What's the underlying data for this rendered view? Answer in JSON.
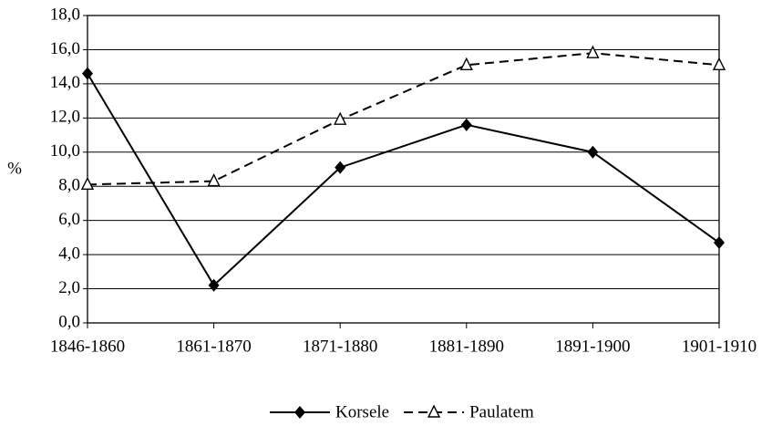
{
  "chart_data": {
    "type": "line",
    "ylabel": "%",
    "categories": [
      "1846-1860",
      "1861-1870",
      "1871-1880",
      "1881-1890",
      "1891-1900",
      "1901-1910"
    ],
    "series": [
      {
        "name": "Korsele",
        "color": "#000000",
        "dash": "solid",
        "marker": "diamond",
        "values": [
          14.6,
          2.2,
          9.1,
          11.6,
          10.0,
          4.7
        ]
      },
      {
        "name": "Paulatem",
        "color": "#000000",
        "dash": "dashed",
        "marker": "triangle",
        "values": [
          8.1,
          8.3,
          11.9,
          15.1,
          15.8,
          15.1
        ]
      }
    ],
    "ylim": [
      0,
      18
    ],
    "yticks": [
      {
        "value": 0,
        "label": "0,0"
      },
      {
        "value": 2,
        "label": "2,0"
      },
      {
        "value": 4,
        "label": "4,0"
      },
      {
        "value": 6,
        "label": "6,0"
      },
      {
        "value": 8,
        "label": "8,0"
      },
      {
        "value": 10,
        "label": "10,0"
      },
      {
        "value": 12,
        "label": "12,0"
      },
      {
        "value": 14,
        "label": "14,0"
      },
      {
        "value": 16,
        "label": "16,0"
      },
      {
        "value": 18,
        "label": "18,0"
      }
    ],
    "grid": true,
    "legend": "bottom"
  }
}
